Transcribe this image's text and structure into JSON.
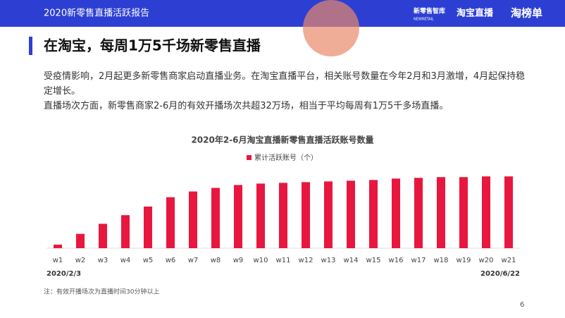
{
  "header": {
    "title": "2020新零售直播活跃报告",
    "logos": [
      "新零售智库",
      "NEWRETAIL",
      "淘宝直播",
      "淘榜单"
    ]
  },
  "title": "在淘宝，每周1万5千场新零售直播",
  "paragraphs": [
    "受疫情影响，2月起更多新零售商家启动直播业务。在淘宝直播平台，相关账号数量在今年2月和3月激增，4月起保持稳定增长。",
    "直播场次方面，新零售商家2-6月的有效开播场次共超32万场，相当于平均每周有1万5千多场直播。"
  ],
  "chart_data": {
    "type": "bar",
    "title": "2020年2-6月淘宝直播新零售直播活跃账号数量",
    "categories": [
      "w1",
      "w2",
      "w3",
      "w4",
      "w5",
      "w6",
      "w7",
      "w8",
      "w9",
      "w10",
      "w11",
      "w12",
      "w13",
      "w14",
      "w15",
      "w16",
      "w17",
      "w18",
      "w19",
      "w20",
      "w21"
    ],
    "series": [
      {
        "name": "累计活跃账号（个）",
        "color": "#e8173f",
        "values": [
          5,
          20,
          34,
          46,
          58,
          71,
          79,
          84,
          88,
          90,
          91,
          92,
          93,
          94,
          95,
          97,
          98,
          99,
          99,
          100,
          100
        ]
      }
    ],
    "ylim": [
      0,
      110
    ],
    "annotations": [
      "2020/2/3",
      "2020/6/22"
    ]
  },
  "footnote": "注：有效开播场次为直播时间30分钟以上",
  "page_number": "6"
}
